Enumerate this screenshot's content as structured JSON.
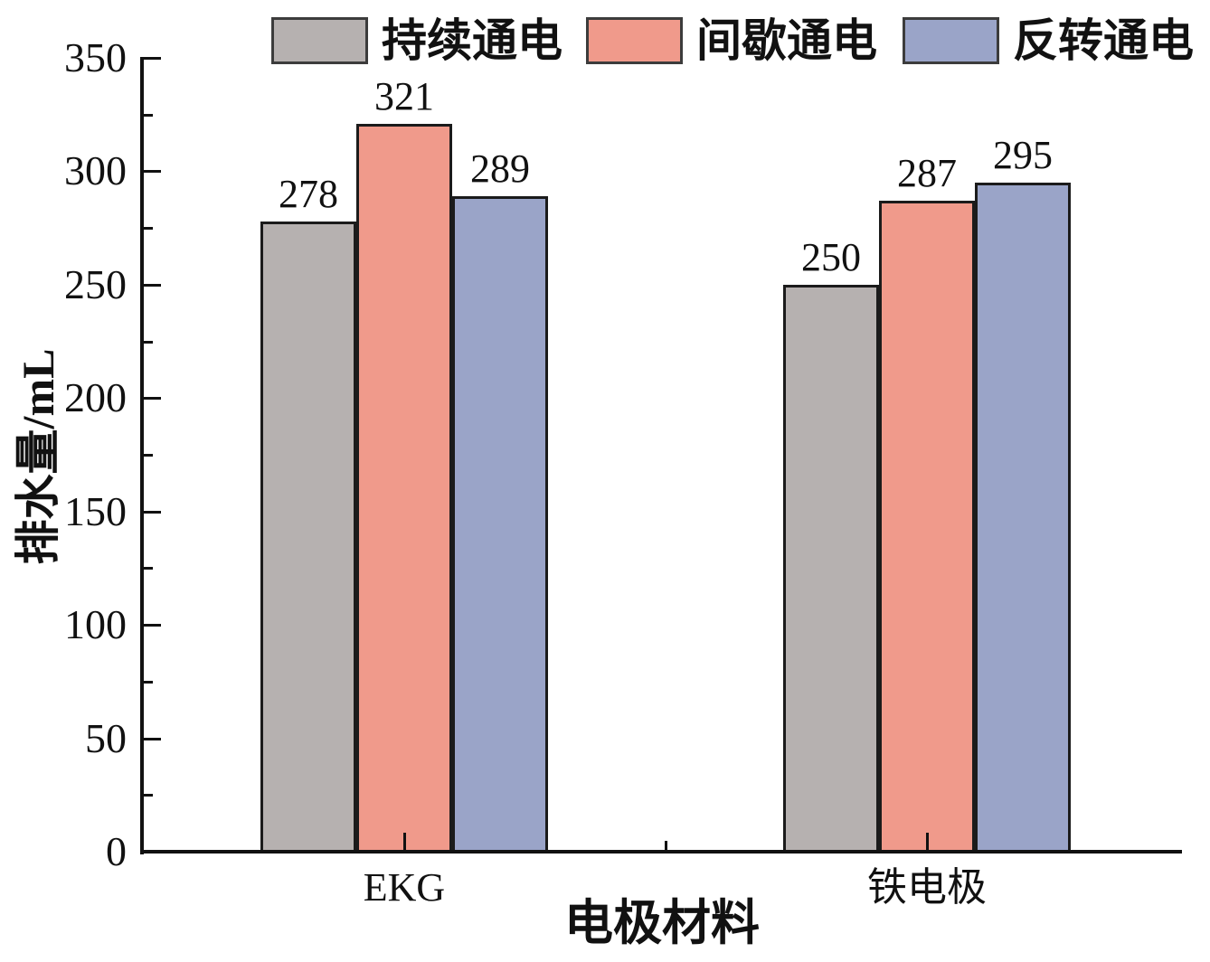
{
  "chart_data": {
    "type": "bar",
    "title": "",
    "xlabel": "电极材料",
    "ylabel": "排水量/mL",
    "categories": [
      "EKG",
      "铁电极"
    ],
    "series": [
      {
        "name": "持续通电",
        "color": "#b6b1b0",
        "values": [
          278,
          250
        ]
      },
      {
        "name": "间歇通电",
        "color": "#f09a8b",
        "values": [
          321,
          287
        ]
      },
      {
        "name": "反转通电",
        "color": "#9aa4c8",
        "values": [
          289,
          295
        ]
      }
    ],
    "value_labels": [
      [
        278,
        250
      ],
      [
        321,
        287
      ],
      [
        289,
        295
      ]
    ],
    "ylim": [
      0,
      350
    ],
    "ytick_step": 50,
    "yminor_step": 25,
    "yticks": [
      0,
      50,
      100,
      150,
      200,
      250,
      300,
      350
    ],
    "grid": false,
    "legend_position": "top",
    "bar_edge_color": "#1b1b1b",
    "axis_color": "#111111"
  }
}
